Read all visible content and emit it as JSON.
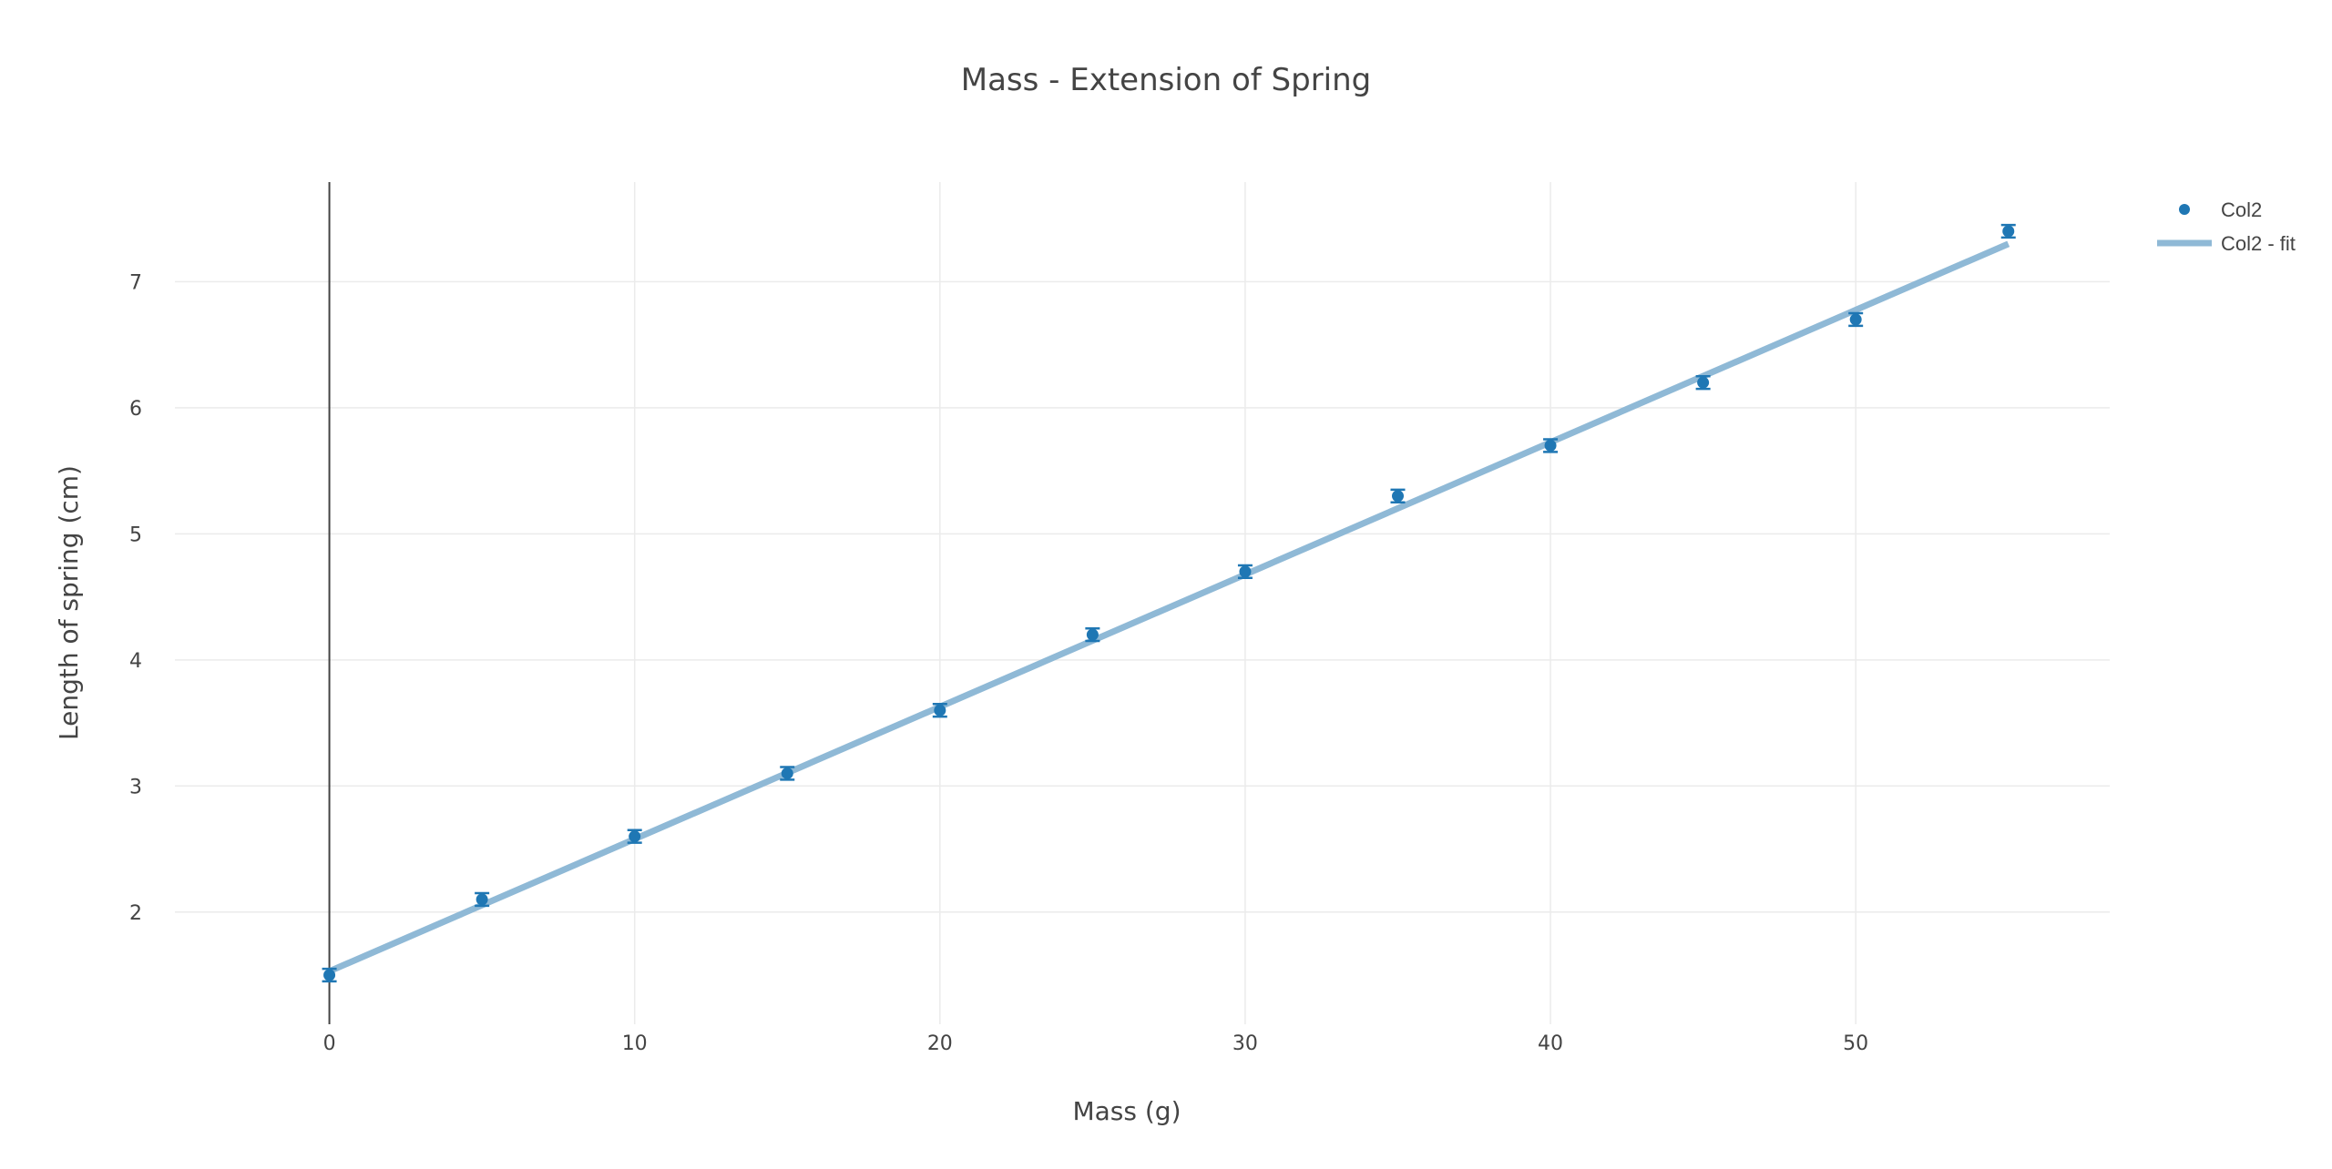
{
  "chart_data": {
    "type": "scatter",
    "title": "Mass - Extension of Spring",
    "xlabel": "Mass (g)",
    "ylabel": "Length of spring (cm)",
    "xlim": [
      -5.06,
      58.32
    ],
    "ylim": [
      1.11,
      7.79
    ],
    "x_ticks": [
      0,
      10,
      20,
      30,
      40,
      50
    ],
    "y_ticks": [
      2,
      3,
      4,
      5,
      6,
      7
    ],
    "grid": true,
    "legend_position": "top-right",
    "colors": {
      "points": "#1f77b4",
      "fit_line": "#8fb9d6"
    },
    "series": [
      {
        "name": "Col2",
        "mode": "markers",
        "error_y": 0.05,
        "x": [
          0,
          5,
          10,
          15,
          20,
          25,
          30,
          35,
          40,
          45,
          50,
          55
        ],
        "y": [
          1.5,
          2.1,
          2.6,
          3.1,
          3.6,
          4.2,
          4.7,
          5.3,
          5.7,
          6.2,
          6.7,
          7.4
        ]
      },
      {
        "name": "Col2 - fit",
        "mode": "lines",
        "x": [
          0,
          55
        ],
        "y": [
          1.53,
          7.3
        ]
      }
    ]
  }
}
